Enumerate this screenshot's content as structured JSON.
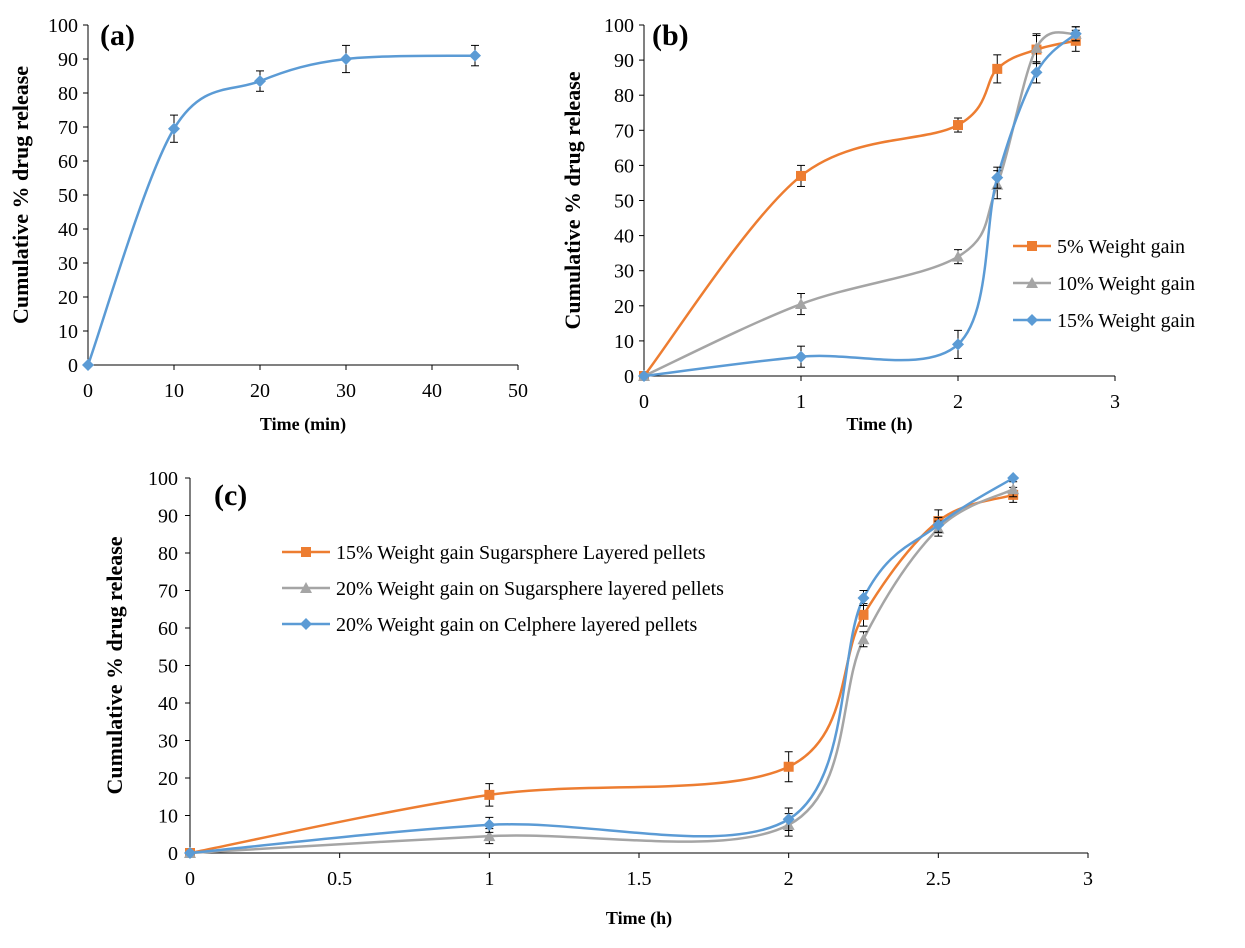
{
  "colors": {
    "orange": "#ED7D31",
    "gray": "#A5A5A5",
    "blue": "#5B9BD5"
  },
  "chart_data": [
    {
      "type": "line",
      "panel_label": "(a)",
      "xlabel": "Time (min)",
      "ylabel": "Cumulative % drug release",
      "xlim": [
        0,
        50
      ],
      "ylim": [
        0,
        100
      ],
      "xticks": [
        "0",
        "10",
        "20",
        "30",
        "40",
        "50"
      ],
      "yticks": [
        "0",
        "10",
        "20",
        "30",
        "40",
        "50",
        "60",
        "70",
        "80",
        "90",
        "100"
      ],
      "grid": false,
      "smooth": true,
      "series": [
        {
          "color": "#5B9BD5",
          "marker": "diamond",
          "x": [
            0,
            10,
            20,
            30,
            45
          ],
          "y": [
            0,
            69.5,
            83.5,
            90,
            91
          ],
          "err": [
            0,
            4,
            3,
            4,
            3
          ]
        }
      ]
    },
    {
      "type": "line",
      "panel_label": "(b)",
      "xlabel": "Time (h)",
      "ylabel": "Cumulative % drug release",
      "xlim": [
        0,
        3
      ],
      "ylim": [
        0,
        100
      ],
      "xticks": [
        "0",
        "1",
        "2",
        "3"
      ],
      "yticks": [
        "0",
        "10",
        "20",
        "30",
        "40",
        "50",
        "60",
        "70",
        "80",
        "90",
        "100"
      ],
      "grid": false,
      "smooth": true,
      "legend": "right",
      "series": [
        {
          "name": "5% Weight gain",
          "color": "#ED7D31",
          "marker": "square",
          "x": [
            0,
            1,
            2,
            2.25,
            2.5,
            2.75
          ],
          "y": [
            0,
            57,
            71.5,
            87.5,
            93,
            95.5
          ],
          "err": [
            0,
            3,
            2,
            4,
            4,
            3
          ]
        },
        {
          "name": "10% Weight gain",
          "color": "#A5A5A5",
          "marker": "triangle",
          "x": [
            0,
            1,
            2,
            2.25,
            2.5,
            2.75
          ],
          "y": [
            0,
            20.5,
            34,
            54.5,
            93.5,
            97.5
          ],
          "err": [
            0,
            3,
            2,
            4,
            4,
            2
          ]
        },
        {
          "name": "15% Weight gain",
          "color": "#5B9BD5",
          "marker": "diamond",
          "x": [
            0,
            1,
            2,
            2.25,
            2.5,
            2.75
          ],
          "y": [
            0,
            5.5,
            9,
            56.5,
            86.5,
            97.5
          ],
          "err": [
            0,
            3,
            4,
            3,
            3,
            2
          ]
        }
      ]
    },
    {
      "type": "line",
      "panel_label": "(c)",
      "xlabel": "Time (h)",
      "ylabel": "Cumulative % drug release",
      "xlim": [
        0,
        3
      ],
      "ylim": [
        0,
        100
      ],
      "xticks": [
        "0",
        "0.5",
        "1",
        "1.5",
        "2",
        "2.5",
        "3"
      ],
      "yticks": [
        "0",
        "10",
        "20",
        "30",
        "40",
        "50",
        "60",
        "70",
        "80",
        "90",
        "100"
      ],
      "grid": false,
      "smooth": true,
      "legend": "top-left",
      "series": [
        {
          "name": "15% Weight gain Sugarsphere Layered pellets",
          "color": "#ED7D31",
          "marker": "square",
          "x": [
            0,
            1,
            2,
            2.25,
            2.5,
            2.75
          ],
          "y": [
            0,
            15.5,
            23,
            63.5,
            88.5,
            95.5
          ],
          "err": [
            0,
            3,
            4,
            3,
            3,
            2
          ]
        },
        {
          "name": "20% Weight gain on Sugarsphere layered pellets",
          "color": "#A5A5A5",
          "marker": "triangle",
          "x": [
            0,
            1,
            2,
            2.25,
            2.5,
            2.75
          ],
          "y": [
            0,
            4.5,
            7.5,
            57,
            86.5,
            97
          ],
          "err": [
            0,
            2,
            3,
            2,
            2,
            2
          ]
        },
        {
          "name": "20% Weight gain on Celphere layered pellets",
          "color": "#5B9BD5",
          "marker": "diamond",
          "x": [
            0,
            1,
            2,
            2.25,
            2.5,
            2.75
          ],
          "y": [
            0,
            7.5,
            9,
            68,
            87.5,
            100
          ],
          "err": [
            0,
            2,
            3,
            2,
            2,
            0
          ]
        }
      ]
    }
  ]
}
